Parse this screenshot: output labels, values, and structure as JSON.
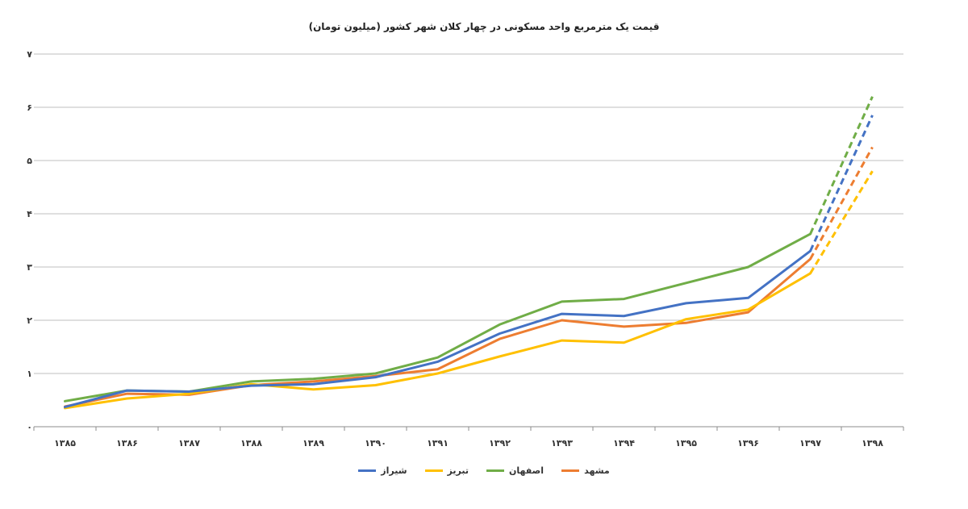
{
  "chart_data": {
    "type": "line",
    "title": "قیمت یک مترمربع واحد مسکونی در چهار کلان شهر کشور (میلیون تومان)",
    "xlabel": "",
    "ylabel": "",
    "categories": [
      "۱۳۸۵",
      "۱۳۸۶",
      "۱۳۸۷",
      "۱۳۸۸",
      "۱۳۸۹",
      "۱۳۹۰",
      "۱۳۹۱",
      "۱۳۹۲",
      "۱۳۹۳",
      "۱۳۹۴",
      "۱۳۹۵",
      "۱۳۹۶",
      "۱۳۹۷",
      "۱۳۹۸"
    ],
    "y_ticks": [
      "۰",
      "۱",
      "۲",
      "۳",
      "۴",
      "۵",
      "۶",
      "۷"
    ],
    "ylim": [
      0,
      7
    ],
    "grid": true,
    "legend_position": "bottom",
    "dashed_last_segment": true,
    "series": [
      {
        "name": "مشهد",
        "color": "#ED7D31",
        "values": [
          0.38,
          0.62,
          0.6,
          0.78,
          0.85,
          0.95,
          1.08,
          1.65,
          2.0,
          1.88,
          1.95,
          2.15,
          3.15,
          5.25
        ]
      },
      {
        "name": "اصفهان",
        "color": "#70AD47",
        "values": [
          0.48,
          0.68,
          0.66,
          0.85,
          0.9,
          1.0,
          1.3,
          1.92,
          2.35,
          2.4,
          2.7,
          3.0,
          3.62,
          6.2
        ]
      },
      {
        "name": "تبریز",
        "color": "#FFC000",
        "values": [
          0.35,
          0.53,
          0.62,
          0.8,
          0.7,
          0.78,
          1.0,
          1.32,
          1.62,
          1.58,
          2.02,
          2.2,
          2.88,
          4.8
        ]
      },
      {
        "name": "شیراز",
        "color": "#4472C4",
        "values": [
          0.37,
          0.68,
          0.66,
          0.77,
          0.8,
          0.93,
          1.22,
          1.75,
          2.12,
          2.08,
          2.32,
          2.42,
          3.3,
          5.85
        ]
      }
    ]
  }
}
